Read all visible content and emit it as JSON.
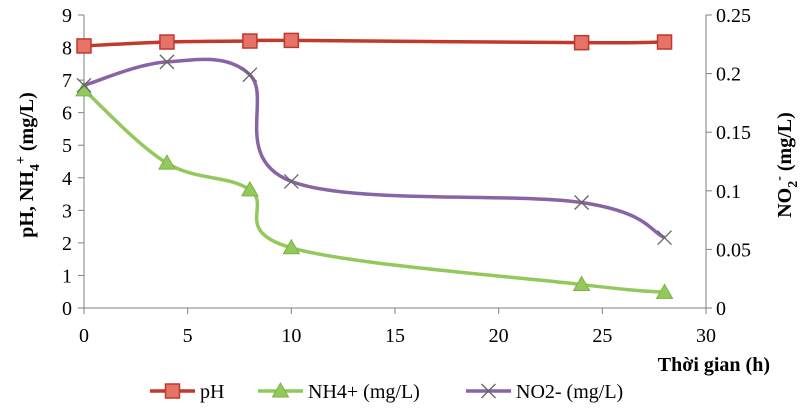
{
  "chart_data": {
    "type": "line",
    "x_axis": {
      "label": "Thời gian (h)",
      "range": [
        0,
        30
      ],
      "ticks": [
        0,
        5,
        10,
        15,
        20,
        25,
        30
      ]
    },
    "y_axis_left": {
      "label_main": "pH, NH",
      "label_sub": "4",
      "label_sup": "+",
      "label_tail": " (mg/L)",
      "range": [
        0,
        9
      ],
      "ticks": [
        0,
        1,
        2,
        3,
        4,
        5,
        6,
        7,
        8,
        9
      ]
    },
    "y_axis_right": {
      "label_main": "NO",
      "label_sub": "2",
      "label_sup": "-",
      "label_tail": " (mg/L)",
      "range": [
        0,
        0.25
      ],
      "ticks": [
        "0",
        "0.05",
        "0.1",
        "0.15",
        "0.2",
        "0.25"
      ]
    },
    "grid": false,
    "legend_position": "bottom",
    "series": [
      {
        "name": "pH",
        "axis": "left",
        "marker": "square",
        "color": "#c0392b",
        "marker_fill": "#e57368",
        "x": [
          0,
          4,
          8,
          10,
          24,
          28
        ],
        "y": [
          8.05,
          8.17,
          8.2,
          8.22,
          8.15,
          8.17
        ]
      },
      {
        "name": "NH4+ (mg/L)",
        "axis": "left",
        "marker": "triangle",
        "color": "#92c95a",
        "marker_fill": "#92c95a",
        "x": [
          0,
          4,
          8,
          10,
          24,
          28
        ],
        "y": [
          6.7,
          4.45,
          3.63,
          1.85,
          0.72,
          0.48
        ]
      },
      {
        "name": "NO2- (mg/L)",
        "axis": "right",
        "marker": "x",
        "color": "#8a63a5",
        "marker_fill": "#666666",
        "x": [
          0,
          4,
          8,
          10,
          24,
          28
        ],
        "y": [
          0.19,
          0.21,
          0.199,
          0.108,
          0.09,
          0.06
        ]
      }
    ]
  }
}
